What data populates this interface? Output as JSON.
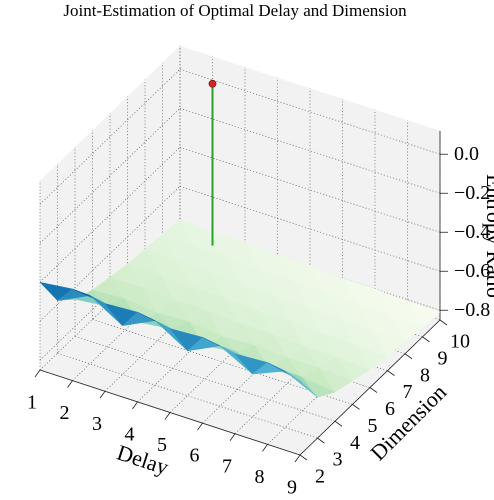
{
  "chart_data": {
    "type": "surface",
    "title": "Joint-Estimation of Optimal Delay and Dimension",
    "xlabel": "Delay",
    "ylabel": "Dimension",
    "zlabel": "Entropy Ratio",
    "x": [
      1,
      2,
      3,
      4,
      5,
      6,
      7,
      8,
      9
    ],
    "y": [
      2,
      3,
      4,
      5,
      6,
      7,
      8,
      9,
      10
    ],
    "z": [
      [
        -0.4,
        -0.38,
        -0.4,
        -0.39,
        -0.42,
        -0.41,
        -0.44,
        -0.43,
        -0.47
      ],
      [
        -0.58,
        -0.5,
        -0.6,
        -0.52,
        -0.62,
        -0.54,
        -0.63,
        -0.56,
        -0.64
      ],
      [
        -0.66,
        -0.64,
        -0.67,
        -0.65,
        -0.68,
        -0.66,
        -0.69,
        -0.68,
        -0.7
      ],
      [
        -0.7,
        -0.69,
        -0.71,
        -0.7,
        -0.72,
        -0.71,
        -0.72,
        -0.72,
        -0.73
      ],
      [
        -0.72,
        -0.72,
        -0.73,
        -0.73,
        -0.74,
        -0.74,
        -0.75,
        -0.75,
        -0.76
      ],
      [
        -0.74,
        -0.74,
        -0.75,
        -0.75,
        -0.76,
        -0.76,
        -0.77,
        -0.77,
        -0.78
      ],
      [
        -0.75,
        -0.76,
        -0.76,
        -0.77,
        -0.77,
        -0.78,
        -0.78,
        -0.79,
        -0.79
      ],
      [
        -0.76,
        -0.77,
        -0.77,
        -0.78,
        -0.78,
        -0.79,
        -0.79,
        -0.8,
        -0.8
      ],
      [
        -0.77,
        -0.78,
        -0.78,
        -0.79,
        -0.79,
        -0.8,
        -0.8,
        -0.81,
        -0.81
      ]
    ],
    "colormap": "GnBu",
    "optimum": {
      "delay": 2,
      "dimension": 10,
      "z": -0.02,
      "color": "#d62728",
      "stem_color": "#2ca02c"
    },
    "xlim": [
      1,
      9
    ],
    "ylim": [
      2,
      10
    ],
    "zlim": [
      -0.85,
      0.12
    ],
    "xticks": [
      1,
      2,
      3,
      4,
      5,
      6,
      7,
      8,
      9
    ],
    "yticks": [
      2,
      3,
      4,
      5,
      6,
      7,
      8,
      9,
      10
    ],
    "zticks": [
      {
        "value": 0,
        "label": "0.0"
      },
      {
        "value": -0.2,
        "label": "−0.2"
      },
      {
        "value": -0.4,
        "label": "−0.4"
      },
      {
        "value": -0.6,
        "label": "−0.6"
      },
      {
        "value": -0.8,
        "label": "−0.8"
      }
    ],
    "grid": true
  }
}
